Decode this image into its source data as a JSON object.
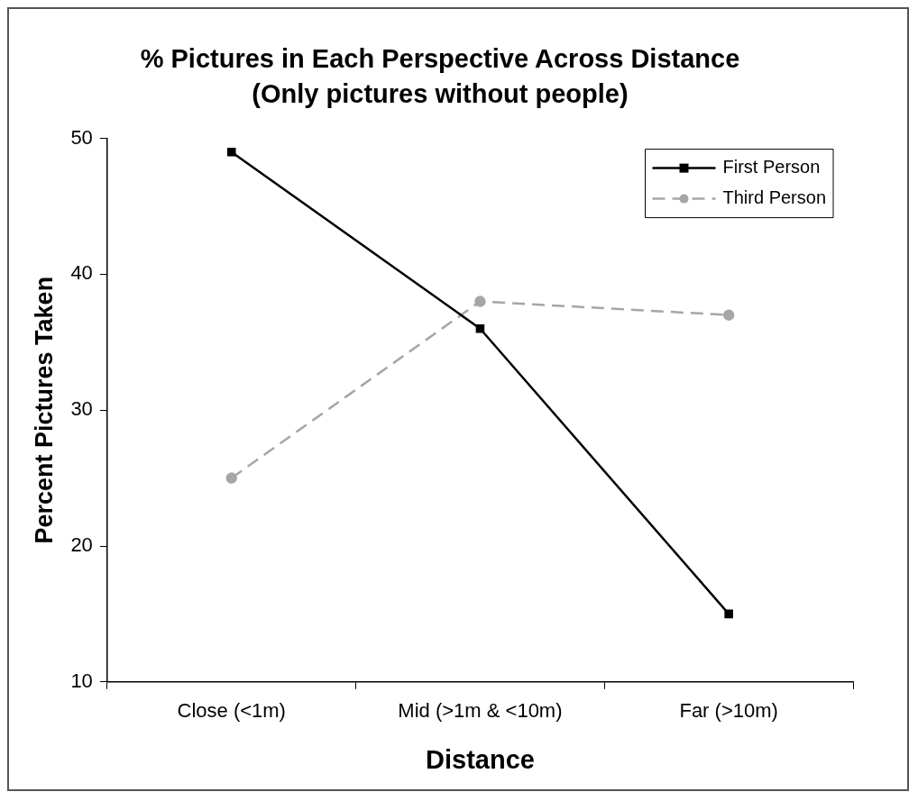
{
  "chart_data": {
    "type": "line",
    "title": "% Pictures in Each Perspective Across Distance",
    "subtitle": "(Only pictures without people)",
    "xlabel": "Distance",
    "ylabel": "Percent Pictures Taken",
    "categories": [
      "Close (<1m)",
      "Mid (>1m & <10m)",
      "Far (>10m)"
    ],
    "series": [
      {
        "name": "First Person",
        "color": "#000000",
        "values": [
          49,
          36,
          15
        ],
        "marker": "square",
        "line_style": "solid"
      },
      {
        "name": "Third Person",
        "color": "#a6a6a6",
        "values": [
          25,
          38,
          37
        ],
        "marker": "circle",
        "line_style": "dashed"
      }
    ],
    "ylim": [
      10,
      50
    ],
    "yticks": [
      10,
      20,
      30,
      40,
      50
    ],
    "grid": false,
    "legend": "top right"
  }
}
